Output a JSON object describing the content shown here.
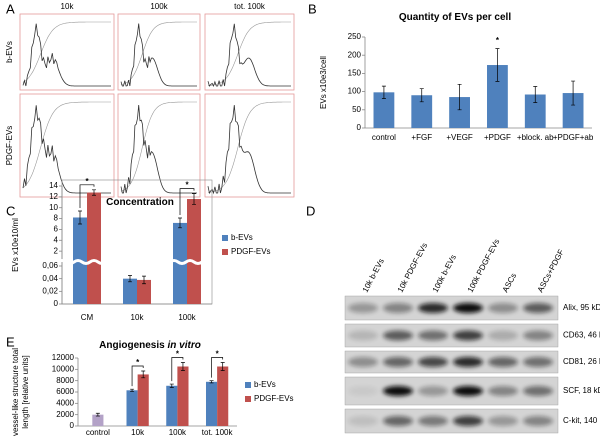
{
  "panel_A": {
    "panel": "A",
    "columns": [
      "10k",
      "100k",
      "tot. 100k"
    ],
    "rows": [
      "b-EVs",
      "PDGF-EVs"
    ]
  },
  "panel_D": {
    "panel": "D",
    "lanes": [
      "10k b-EVs",
      "10k PDGF-EVs",
      "100k b-EVs",
      "100k PDGF-EVs",
      "ASCs",
      "ASCs+PDGF"
    ],
    "bands": [
      "Alix, 95 kD",
      "CD63, 46 kD",
      "CD81, 26 kD",
      "SCF, 18 kD",
      "C-kit, 140 kD"
    ]
  },
  "chart_data": [
    {
      "panel": "B",
      "type": "bar",
      "title": "Quantity of EVs per cell",
      "ylabel": "EVs x10e3/cell",
      "categories": [
        "control",
        "+FGF",
        "+VEGF",
        "+PDGF",
        "+block. ab",
        "+PDGF+ab"
      ],
      "series": [
        {
          "color": "#4f81bd",
          "values": [
            98,
            90,
            85,
            173,
            92,
            96
          ],
          "errors": [
            17,
            18,
            35,
            45,
            22,
            33
          ]
        }
      ],
      "ylim": [
        0,
        250
      ],
      "yticks": [
        0,
        50,
        100,
        150,
        200,
        250
      ],
      "annotations": [
        {
          "text": "*",
          "x": "+PDGF"
        }
      ]
    },
    {
      "panel": "C",
      "type": "bar",
      "title": "Concentration",
      "ylabel": "EVs x10e10/ml",
      "categories": [
        "CM",
        "10k",
        "100k"
      ],
      "series": [
        {
          "name": "b-EVs",
          "color": "#4f81bd",
          "values": [
            8.2,
            0.04,
            7.2
          ],
          "errors": [
            1.2,
            0.005,
            0.9
          ]
        },
        {
          "name": "PDGF-EVs",
          "color": "#c0504d",
          "values": [
            12.8,
            0.038,
            11.6
          ],
          "errors": [
            0.5,
            0.006,
            1.0
          ]
        }
      ],
      "ylim_lower": [
        0,
        0.06
      ],
      "ylim_upper": [
        0,
        14
      ],
      "yticks": [
        0,
        {
          "value": 0.02,
          "label": "0,02"
        },
        {
          "value": 0.04,
          "label": "0,04"
        },
        {
          "value": 0.06,
          "label": "0,06"
        },
        2,
        4,
        6,
        8,
        10,
        12,
        14
      ],
      "legend": "right",
      "annotations": [
        {
          "text": "*",
          "x": "CM"
        },
        {
          "text": "*",
          "x": "100k"
        }
      ]
    },
    {
      "panel": "E",
      "type": "bar",
      "title": "Angiogenesis",
      "title_italic": "in vitro",
      "ylabel": [
        "vessel-like structure total",
        "length [relative units]"
      ],
      "categories": [
        "control",
        "10k",
        "100k",
        "tot. 100k"
      ],
      "series": [
        {
          "color": "#b3a2c7",
          "values": [
            2000,
            null,
            null,
            null
          ],
          "errors": [
            250,
            null,
            null,
            null
          ]
        },
        {
          "name": "b-EVs",
          "color": "#4f81bd",
          "values": [
            null,
            6300,
            7100,
            7800
          ],
          "errors": [
            null,
            200,
            300,
            200
          ]
        },
        {
          "name": "PDGF-EVs",
          "color": "#c0504d",
          "values": [
            null,
            9100,
            10500,
            10500
          ],
          "errors": [
            null,
            600,
            700,
            700
          ]
        }
      ],
      "ylim": [
        0,
        12000
      ],
      "yticks": [
        0,
        2000,
        4000,
        6000,
        8000,
        10000,
        12000
      ],
      "legend": "right",
      "annotations": [
        {
          "text": "*",
          "x": "10k"
        },
        {
          "text": "*",
          "x": "100k"
        },
        {
          "text": "*",
          "x": "tot. 100k"
        }
      ]
    }
  ]
}
